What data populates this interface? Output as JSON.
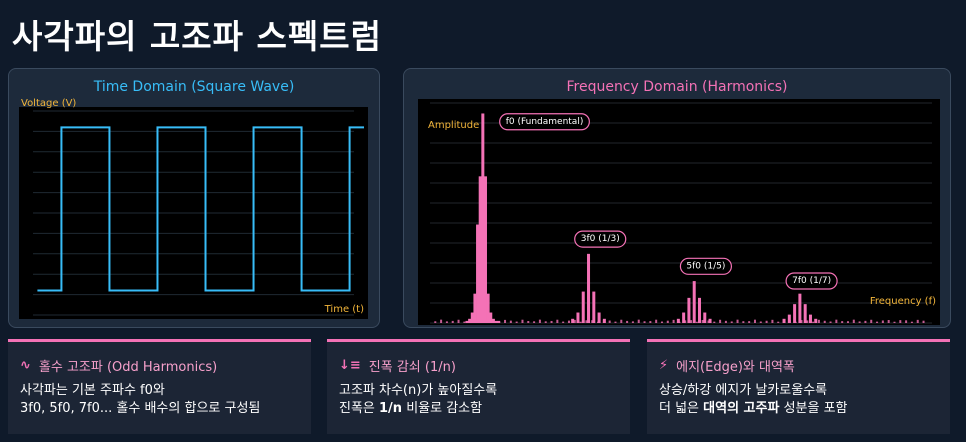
{
  "page_title": "사각파의 고조파 스펙트럼",
  "time_panel": {
    "title": "Time Domain (Square Wave)",
    "y_label": "Voltage (V)",
    "x_label": "Time (t)",
    "title_color": "#38bdf8",
    "line_color": "#38bdf8"
  },
  "freq_panel": {
    "title": "Frequency Domain (Harmonics)",
    "y_label": "Amplitude",
    "x_label": "Frequency (f)",
    "title_color": "#f472b6",
    "bar_color": "#f472b6"
  },
  "chart_data": [
    {
      "type": "line",
      "title": "Time Domain (Square Wave)",
      "xlabel": "Time (t)",
      "ylabel": "Voltage (V)",
      "grid": true,
      "series": [
        {
          "x": [
            0,
            0.5,
            0.5,
            1.5,
            1.5,
            2.5,
            2.5,
            3.5,
            3.5,
            4.5,
            4.5,
            5.5,
            5.5,
            6.5,
            6.5,
            6.8
          ],
          "y": [
            -1,
            -1,
            1,
            1,
            -1,
            -1,
            1,
            1,
            -1,
            -1,
            1,
            1,
            -1,
            -1,
            1,
            1
          ]
        }
      ],
      "xlim": [
        -0.3,
        6.8
      ],
      "ylim": [
        -1.3,
        1.2
      ]
    },
    {
      "type": "bar",
      "title": "Frequency Domain (Harmonics)",
      "xlabel": "Frequency (f)",
      "ylabel": "Amplitude",
      "grid": true,
      "series": [
        {
          "x": [
            0.7,
            0.75,
            0.8,
            0.85,
            0.9,
            0.95,
            1.0,
            1.05,
            1.1,
            1.15,
            1.2,
            1.25,
            1.3,
            2.7,
            2.8,
            2.9,
            3.0,
            3.1,
            3.2,
            3.3,
            4.7,
            4.8,
            4.9,
            5.0,
            5.1,
            5.2,
            5.3,
            6.7,
            6.8,
            6.9,
            7.0,
            7.1,
            7.2,
            7.3
          ],
          "y": [
            0.01,
            0.02,
            0.05,
            0.14,
            0.47,
            0.7,
            1.0,
            0.7,
            0.14,
            0.05,
            0.02,
            0.01,
            0.01,
            0.02,
            0.05,
            0.15,
            0.33,
            0.15,
            0.05,
            0.02,
            0.02,
            0.05,
            0.12,
            0.2,
            0.12,
            0.05,
            0.02,
            0.02,
            0.04,
            0.09,
            0.14,
            0.09,
            0.04,
            0.02
          ]
        }
      ],
      "annotations": [
        "f0 (Fundamental)",
        "3f0 (1/3)",
        "5f0 (1/5)",
        "7f0 (1/7)"
      ],
      "xlim": [
        0,
        9.5
      ],
      "ylim": [
        0,
        1.05
      ]
    }
  ],
  "cards": [
    {
      "icon": "∿",
      "heading": "홀수 고조파 (Odd Harmonics)",
      "line1": "사각파는 기본 주파수 f0와",
      "line2": "3f0, 5f0, 7f0... 홀수 배수의 합으로 구성됨"
    },
    {
      "icon": "↓≡",
      "heading": "진폭 감쇠 (1/n)",
      "line1": "고조파 차수(n)가 높아질수록",
      "line2a": "진폭은 ",
      "line2b": "1/n",
      "line2c": " 비율로 감소함"
    },
    {
      "icon": "⚡",
      "heading": "에지(Edge)와 대역폭",
      "line1": "상승/하강 에지가 날카로울수록",
      "line2a": "더 넓은 ",
      "line2b": "대역의 고주파",
      "line2c": " 성분을 포함"
    }
  ]
}
